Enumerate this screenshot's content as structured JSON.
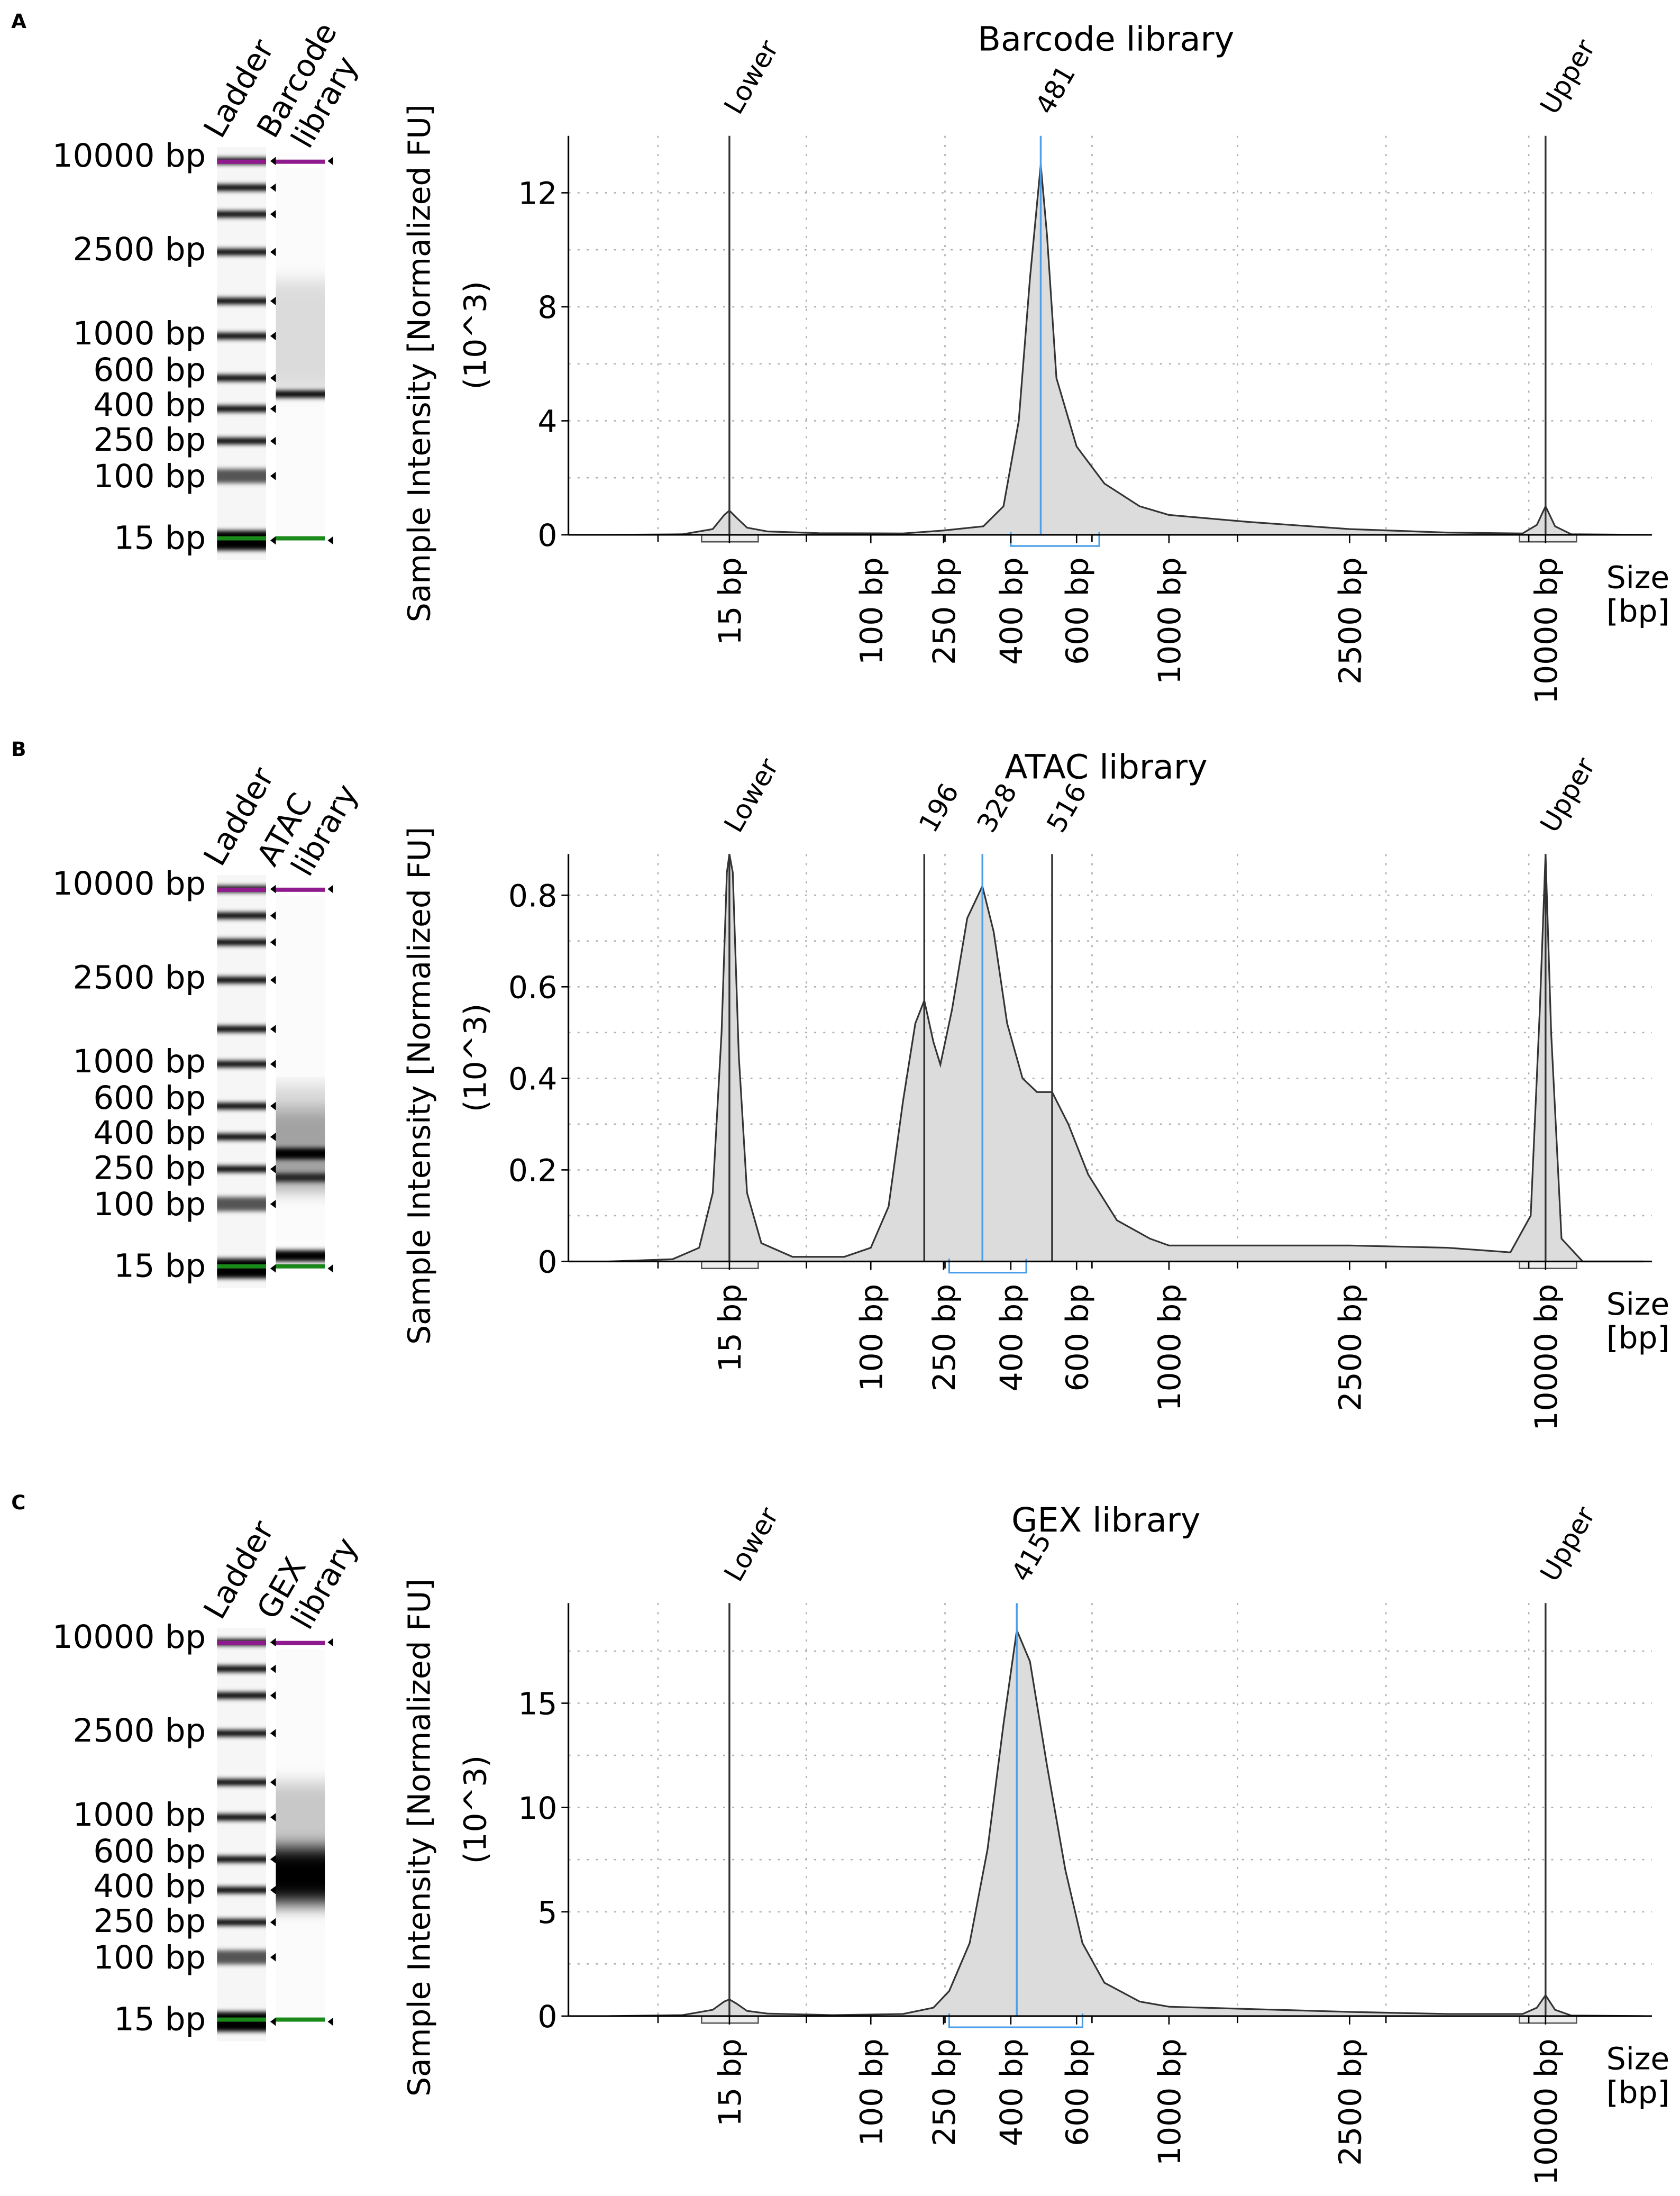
{
  "panels": [
    {
      "letter": "A",
      "lanes": [
        "Ladder",
        "Barcode library"
      ],
      "lane_label_lines": [
        [
          "Ladder"
        ],
        [
          "Barcode",
          "library"
        ]
      ]
    },
    {
      "letter": "B",
      "lanes": [
        "Ladder",
        "ATAC library"
      ],
      "lane_label_lines": [
        [
          "Ladder"
        ],
        [
          "ATAC",
          "library"
        ]
      ]
    },
    {
      "letter": "C",
      "lanes": [
        "Ladder",
        "GEX library"
      ],
      "lane_label_lines": [
        [
          "Ladder"
        ],
        [
          "GEX",
          "library"
        ]
      ]
    }
  ],
  "gel": {
    "size_labels": [
      "10000 bp",
      "2500 bp",
      "1000 bp",
      "600 bp",
      "400 bp",
      "250 bp",
      "100 bp",
      "15 bp"
    ],
    "lower_marker_color": "#1a8a1a",
    "upper_marker_color": "#8e1a8e"
  },
  "colors": {
    "trace_fill": "#dcdcdc",
    "trace_line": "#333333",
    "marker_line": "#333333",
    "peak_line": "#4a9fe8",
    "grid": "#b0b0b0"
  },
  "chart_data": [
    {
      "type": "area",
      "title": "Barcode library",
      "ylabel": "Sample Intensity [Normalized FU]",
      "ylabel_unit": "(10^3)",
      "xlabel": [
        "Size",
        "[bp]"
      ],
      "xscale": "nonlinear (log-like)",
      "xticks": [
        15,
        100,
        250,
        400,
        600,
        1000,
        2500,
        10000
      ],
      "xtick_labels": [
        "15 bp",
        "100 bp",
        "250 bp",
        "400 bp",
        "600 bp",
        "1000 bp",
        "2500 bp",
        "10000 bp"
      ],
      "yticks": [
        0,
        4,
        8,
        12
      ],
      "ytick_labels": [
        "0",
        "4",
        "8",
        "12"
      ],
      "ylim": [
        0,
        14
      ],
      "grid": true,
      "markers": [
        {
          "label": "Lower",
          "bp": 15,
          "kind": "marker"
        },
        {
          "label": "481",
          "bp": 481,
          "kind": "peak"
        },
        {
          "label": "Upper",
          "bp": 10000,
          "kind": "marker"
        }
      ],
      "regions": [
        {
          "from": 400,
          "to": 680,
          "kind": "selected"
        }
      ],
      "points": [
        [
          3,
          0
        ],
        [
          8,
          0.02
        ],
        [
          12,
          0.2
        ],
        [
          14,
          0.7
        ],
        [
          15,
          0.85
        ],
        [
          16.5,
          0.6
        ],
        [
          19,
          0.25
        ],
        [
          25,
          0.12
        ],
        [
          50,
          0.06
        ],
        [
          150,
          0.05
        ],
        [
          250,
          0.15
        ],
        [
          330,
          0.3
        ],
        [
          380,
          1.0
        ],
        [
          420,
          4
        ],
        [
          450,
          9
        ],
        [
          481,
          13
        ],
        [
          500,
          10.5
        ],
        [
          530,
          5.5
        ],
        [
          600,
          3.1
        ],
        [
          700,
          1.8
        ],
        [
          850,
          1.0
        ],
        [
          1000,
          0.7
        ],
        [
          1500,
          0.45
        ],
        [
          2500,
          0.2
        ],
        [
          5000,
          0.08
        ],
        [
          8500,
          0.05
        ],
        [
          9400,
          0.35
        ],
        [
          10000,
          1.0
        ],
        [
          10700,
          0.3
        ],
        [
          12000,
          0.02
        ],
        [
          20000,
          0
        ]
      ]
    },
    {
      "type": "area",
      "title": "ATAC library",
      "ylabel": "Sample Intensity [Normalized FU]",
      "ylabel_unit": "(10^3)",
      "xlabel": [
        "Size",
        "[bp]"
      ],
      "xscale": "nonlinear (log-like)",
      "xticks": [
        15,
        100,
        250,
        400,
        600,
        1000,
        2500,
        10000
      ],
      "xtick_labels": [
        "15 bp",
        "100 bp",
        "250 bp",
        "400 bp",
        "600 bp",
        "1000 bp",
        "2500 bp",
        "10000 bp"
      ],
      "yticks": [
        0,
        0.2,
        0.4,
        0.6,
        0.8
      ],
      "ytick_labels": [
        "0",
        "0.2",
        "0.4",
        "0.6",
        "0.8"
      ],
      "ylim": [
        0,
        0.89
      ],
      "grid": true,
      "markers": [
        {
          "label": "Lower",
          "bp": 15,
          "kind": "marker"
        },
        {
          "label": "196",
          "bp": 196,
          "kind": "marker"
        },
        {
          "label": "328",
          "bp": 328,
          "kind": "peak"
        },
        {
          "label": "516",
          "bp": 516,
          "kind": "marker"
        },
        {
          "label": "Upper",
          "bp": 10000,
          "kind": "marker"
        }
      ],
      "regions": [
        {
          "from": 260,
          "to": 440,
          "kind": "selected"
        }
      ],
      "points": [
        [
          3,
          0
        ],
        [
          7,
          0.005
        ],
        [
          10,
          0.03
        ],
        [
          12,
          0.15
        ],
        [
          13.5,
          0.5
        ],
        [
          14.5,
          0.85
        ],
        [
          15,
          1.0
        ],
        [
          15.7,
          0.85
        ],
        [
          17,
          0.45
        ],
        [
          19,
          0.15
        ],
        [
          23,
          0.04
        ],
        [
          35,
          0.01
        ],
        [
          70,
          0.01
        ],
        [
          100,
          0.03
        ],
        [
          125,
          0.12
        ],
        [
          150,
          0.35
        ],
        [
          175,
          0.52
        ],
        [
          196,
          0.57
        ],
        [
          220,
          0.48
        ],
        [
          240,
          0.43
        ],
        [
          265,
          0.55
        ],
        [
          295,
          0.75
        ],
        [
          328,
          0.82
        ],
        [
          355,
          0.72
        ],
        [
          390,
          0.52
        ],
        [
          430,
          0.4
        ],
        [
          470,
          0.37
        ],
        [
          516,
          0.37
        ],
        [
          570,
          0.3
        ],
        [
          640,
          0.19
        ],
        [
          750,
          0.09
        ],
        [
          900,
          0.05
        ],
        [
          1000,
          0.035
        ],
        [
          2500,
          0.035
        ],
        [
          5000,
          0.03
        ],
        [
          7800,
          0.02
        ],
        [
          9000,
          0.1
        ],
        [
          9600,
          0.55
        ],
        [
          10000,
          1.0
        ],
        [
          10400,
          0.5
        ],
        [
          11200,
          0.05
        ],
        [
          13000,
          0
        ],
        [
          20000,
          0
        ]
      ]
    },
    {
      "type": "area",
      "title": "GEX library",
      "ylabel": "Sample Intensity [Normalized FU]",
      "ylabel_unit": "(10^3)",
      "xlabel": [
        "Size",
        "[bp]"
      ],
      "xscale": "nonlinear (log-like)",
      "xticks": [
        15,
        100,
        250,
        400,
        600,
        1000,
        2500,
        10000
      ],
      "xtick_labels": [
        "15 bp",
        "100 bp",
        "250 bp",
        "400 bp",
        "600 bp",
        "1000 bp",
        "2500 bp",
        "10000 bp"
      ],
      "yticks": [
        0,
        5,
        10,
        15
      ],
      "ytick_labels": [
        "0",
        "5",
        "10",
        "15"
      ],
      "ylim": [
        0,
        19.8
      ],
      "grid": true,
      "markers": [
        {
          "label": "Lower",
          "bp": 15,
          "kind": "marker"
        },
        {
          "label": "415",
          "bp": 415,
          "kind": "peak"
        },
        {
          "label": "Upper",
          "bp": 10000,
          "kind": "marker"
        }
      ],
      "regions": [
        {
          "from": 260,
          "to": 620,
          "kind": "selected"
        }
      ],
      "points": [
        [
          3,
          0
        ],
        [
          8,
          0.05
        ],
        [
          12,
          0.3
        ],
        [
          14,
          0.7
        ],
        [
          15,
          0.8
        ],
        [
          16.5,
          0.6
        ],
        [
          19,
          0.25
        ],
        [
          25,
          0.12
        ],
        [
          60,
          0.05
        ],
        [
          150,
          0.1
        ],
        [
          220,
          0.4
        ],
        [
          260,
          1.2
        ],
        [
          300,
          3.5
        ],
        [
          340,
          8
        ],
        [
          380,
          14
        ],
        [
          415,
          18.5
        ],
        [
          450,
          17
        ],
        [
          500,
          12
        ],
        [
          560,
          7
        ],
        [
          620,
          3.5
        ],
        [
          700,
          1.6
        ],
        [
          850,
          0.7
        ],
        [
          1000,
          0.45
        ],
        [
          2500,
          0.2
        ],
        [
          5000,
          0.1
        ],
        [
          8500,
          0.1
        ],
        [
          9400,
          0.4
        ],
        [
          10000,
          1.0
        ],
        [
          10700,
          0.3
        ],
        [
          12000,
          0.03
        ],
        [
          20000,
          0
        ]
      ]
    }
  ]
}
